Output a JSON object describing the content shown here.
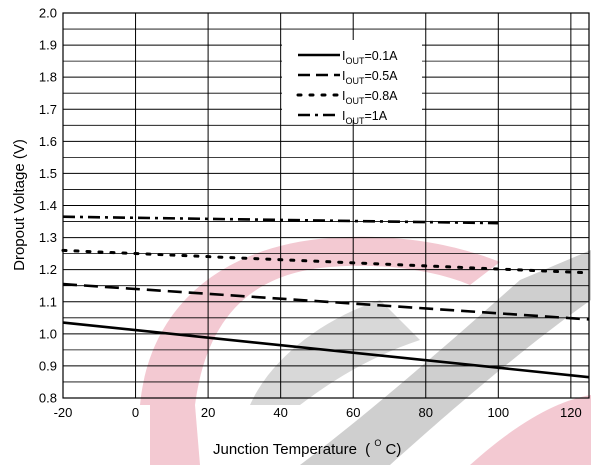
{
  "chart_data": {
    "type": "line",
    "xlabel": "Junction Temperature",
    "xlabel_unit_prefix": "(",
    "xlabel_unit_super": "O",
    "xlabel_unit_suffix": "C)",
    "ylabel": "Dropout Voltage (V)",
    "xlim": [
      -20,
      125
    ],
    "ylim": [
      0.8,
      2.0
    ],
    "x_ticks": [
      -20,
      0,
      20,
      40,
      60,
      80,
      100,
      120
    ],
    "x_tick_labels": [
      "-20",
      "0",
      "20",
      "40",
      "60",
      "80",
      "100",
      "120"
    ],
    "y_ticks": [
      0.8,
      0.9,
      1.0,
      1.1,
      1.2,
      1.3,
      1.4,
      1.5,
      1.6,
      1.7,
      1.8,
      1.9,
      2.0
    ],
    "y_tick_labels": [
      "0.8",
      "0.9",
      "1.0",
      "1.1",
      "1.2",
      "1.3",
      "1.4",
      "1.5",
      "1.6",
      "1.7",
      "1.8",
      "1.9",
      "2.0"
    ],
    "grid": true,
    "legend_position": "top-center",
    "series": [
      {
        "name_main": "I",
        "name_sub": "OUT",
        "name_rest": "=0.1A",
        "style": "solid",
        "x": [
          -20,
          125
        ],
        "y": [
          1.035,
          0.865
        ]
      },
      {
        "name_main": "I",
        "name_sub": "OUT",
        "name_rest": "=0.5A",
        "style": "dashed",
        "x": [
          -20,
          125
        ],
        "y": [
          1.155,
          1.045
        ]
      },
      {
        "name_main": "I",
        "name_sub": "OUT",
        "name_rest": "=0.8A",
        "style": "dotted",
        "x": [
          -20,
          125
        ],
        "y": [
          1.26,
          1.19
        ]
      },
      {
        "name_main": "I",
        "name_sub": "OUT",
        "name_rest": "=1A",
        "style": "dashdot",
        "x": [
          -20,
          100
        ],
        "y": [
          1.365,
          1.345
        ]
      }
    ]
  }
}
